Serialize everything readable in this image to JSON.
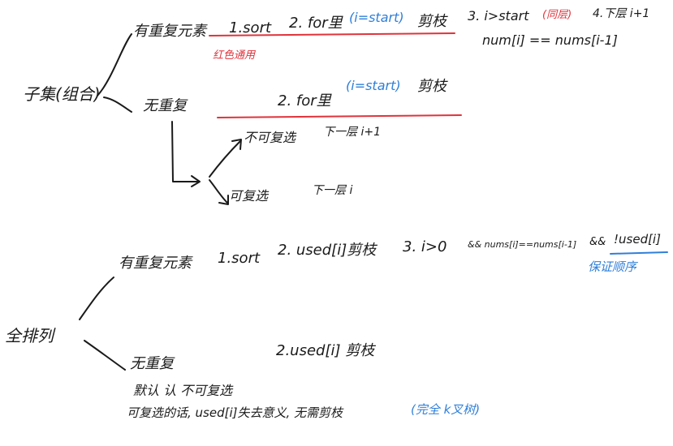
{
  "colors": {
    "ink": "#1a1a1a",
    "blue": "#2f7fd8",
    "red": "#e0333b"
  },
  "subset": {
    "root": "子集(组合)",
    "has_dup": {
      "label": "有重复元素",
      "step1": "1.sort",
      "step2_prefix": "2. for里",
      "step2_cond": "(i=start)",
      "step2_suffix": "剪枝",
      "step3_prefix": "3. i>start",
      "step3_note": "(同层)",
      "step4": "4.下层 i+1",
      "cond": "num[i] == nums[i-1]",
      "red_note": "红色通用"
    },
    "no_dup": {
      "label": "无重复",
      "step2_prefix": "2. for里",
      "step2_cond": "(i=start)",
      "step2_suffix": "剪枝",
      "branch_not_reselect": {
        "label": "不可复选",
        "next": "下一层 i+1"
      },
      "branch_reselect": {
        "label": "可复选",
        "next": "下一层 i"
      }
    }
  },
  "perm": {
    "root": "全排列",
    "has_dup": {
      "label": "有重复元素",
      "step1": "1.sort",
      "step2": "2. used[i]剪枝",
      "step3": "3. i>0",
      "cond": "&& nums[i]==nums[i-1]",
      "cond_and": "&&",
      "cond_used": "!used[i]",
      "blue_note": "保证顺序"
    },
    "no_dup": {
      "label": "无重复",
      "step2": "2.used[i] 剪枝",
      "default_note": "默认 认 不可复选",
      "reselect_prefix": "可复选的话, used[i]失去意义, 无需剪枝",
      "reselect_blue": "(完全 k叉树)"
    }
  }
}
